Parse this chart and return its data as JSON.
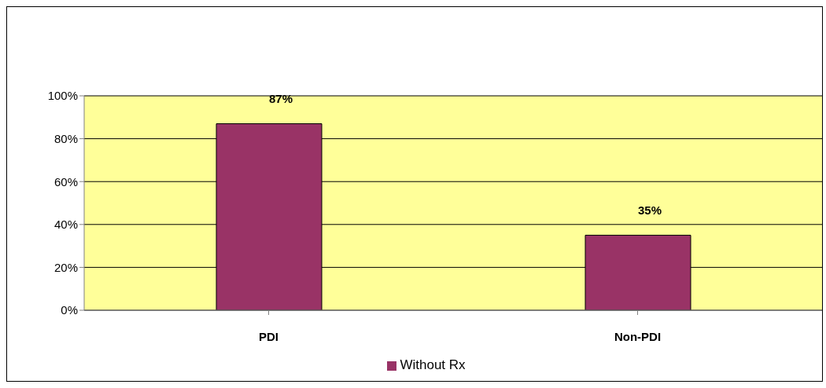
{
  "chart_data": {
    "type": "bar",
    "categories": [
      "PDI",
      "Non-PDI"
    ],
    "series": [
      {
        "name": "Without Rx",
        "color": "#993366",
        "values": [
          87,
          35
        ],
        "value_labels": [
          "87%",
          "35%"
        ]
      }
    ],
    "ylim": [
      0,
      100
    ],
    "yticks": [
      {
        "value": 0,
        "label": "0%"
      },
      {
        "value": 20,
        "label": "20%"
      },
      {
        "value": 40,
        "label": "40%"
      },
      {
        "value": 60,
        "label": "60%"
      },
      {
        "value": 80,
        "label": "80%"
      },
      {
        "value": 100,
        "label": "100%"
      }
    ],
    "grid": "y",
    "legend": "bottom"
  }
}
